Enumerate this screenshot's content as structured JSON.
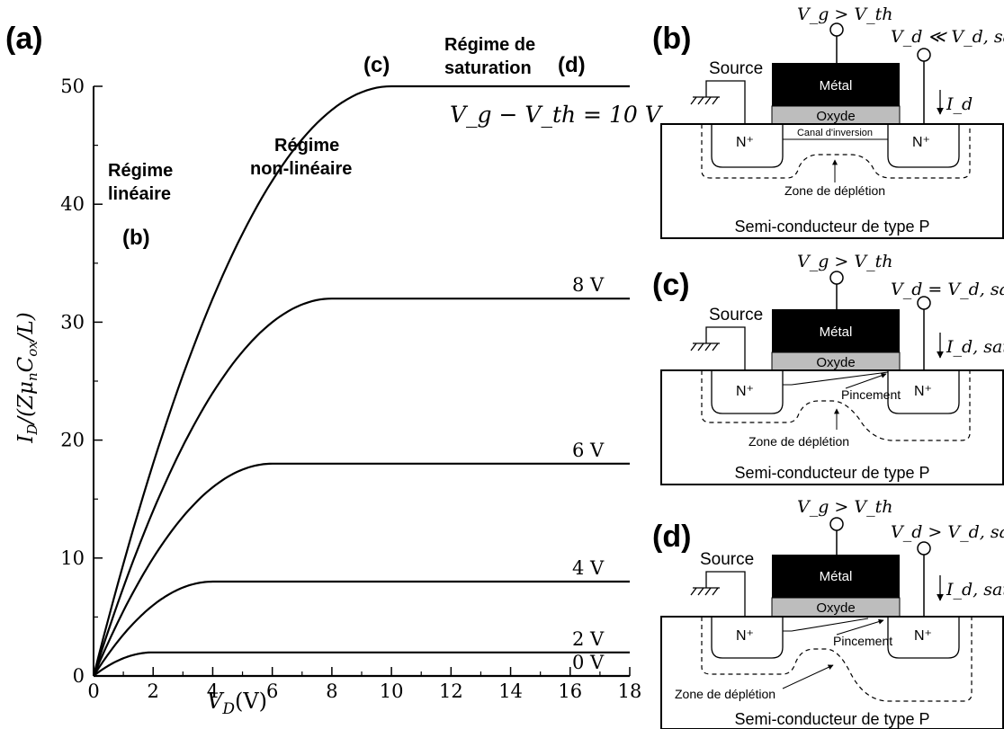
{
  "panel_labels": {
    "a": "(a)",
    "b": "(b)",
    "c": "(c)",
    "d": "(d)"
  },
  "chart_data": {
    "type": "line",
    "xlabel": "V_D (V)",
    "ylabel": "I_D/(Zμ_nC_ox/L)",
    "xlim": [
      0,
      18
    ],
    "ylim": [
      0,
      50
    ],
    "x_ticks": [
      0,
      2,
      4,
      6,
      8,
      10,
      12,
      14,
      16,
      18
    ],
    "y_ticks": [
      0,
      10,
      20,
      30,
      40,
      50
    ],
    "series": [
      {
        "name": "0 V",
        "vsat": 0,
        "isat": 0
      },
      {
        "name": "2 V",
        "vsat": 2,
        "isat": 2
      },
      {
        "name": "4 V",
        "vsat": 4,
        "isat": 8
      },
      {
        "name": "6 V",
        "vsat": 6,
        "isat": 18
      },
      {
        "name": "8 V",
        "vsat": 8,
        "isat": 32
      },
      {
        "name": "V_g − V_th = 10 V",
        "vsat": 10,
        "isat": 50
      }
    ],
    "annotations": {
      "lineaire": [
        "Régime",
        "linéaire"
      ],
      "lineaire_marker": "(b)",
      "nonlineaire": [
        "Régime",
        "non-linéaire"
      ],
      "nonlineaire_marker": "(c)",
      "saturation": [
        "Régime de",
        "saturation"
      ],
      "saturation_marker": "(d)"
    }
  },
  "diagrams": {
    "b": {
      "vg": "V_g > V_th",
      "vd": "V_d ≪ V_d, sat",
      "id": "I_d",
      "source": "Source",
      "metal": "Métal",
      "oxide": "Oxyde",
      "n_left": "N⁺",
      "n_right": "N⁺",
      "channel": "Canal d'inversion",
      "depletion": "Zone de déplétion",
      "substrate": "Semi-conducteur de type P"
    },
    "c": {
      "vg": "V_g > V_th",
      "vd": "V_d = V_d, sat",
      "id": "I_d, sat",
      "source": "Source",
      "metal": "Métal",
      "oxide": "Oxyde",
      "n_left": "N⁺",
      "n_right": "N⁺",
      "pinch": "Pincement",
      "depletion": "Zone de déplétion",
      "substrate": "Semi-conducteur de type P"
    },
    "d": {
      "vg": "V_g > V_th",
      "vd": "V_d > V_d, sat",
      "id": "I_d, sat",
      "source": "Source",
      "metal": "Métal",
      "oxide": "Oxyde",
      "n_left": "N⁺",
      "n_right": "N⁺",
      "pinch": "Pincement",
      "depletion": "Zone de déplétion",
      "substrate": "Semi-conducteur de type P"
    }
  }
}
